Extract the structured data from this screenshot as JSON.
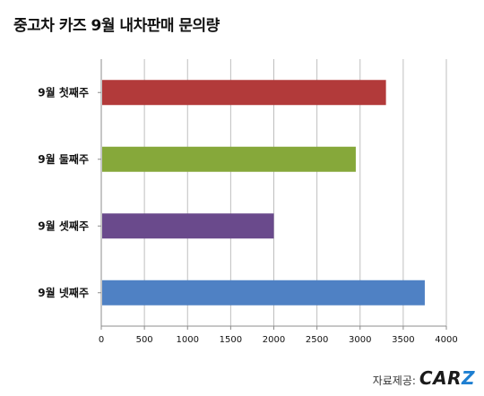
{
  "title": "중고차 카즈 9월 내차판매 문의량",
  "source": {
    "label": "자료제공:",
    "logo_main": "CAR",
    "logo_accent": "Z",
    "accent_color": "#1e7fd1"
  },
  "chart_data": {
    "type": "bar",
    "orientation": "horizontal",
    "title": "중고차 카즈 9월 내차판매 문의량",
    "categories": [
      "9월 첫째주",
      "9월 둘째주",
      "9월 셋째주",
      "9월 넷째주"
    ],
    "values": [
      3300,
      2950,
      2000,
      3750
    ],
    "colors": [
      "#b23a3a",
      "#86a83a",
      "#6a4a8c",
      "#4f81c4"
    ],
    "xlim": [
      0,
      4000
    ],
    "xticks": [
      0,
      500,
      1000,
      1500,
      2000,
      2500,
      3000,
      3500,
      4000
    ],
    "grid": "vertical",
    "legend": "none"
  }
}
